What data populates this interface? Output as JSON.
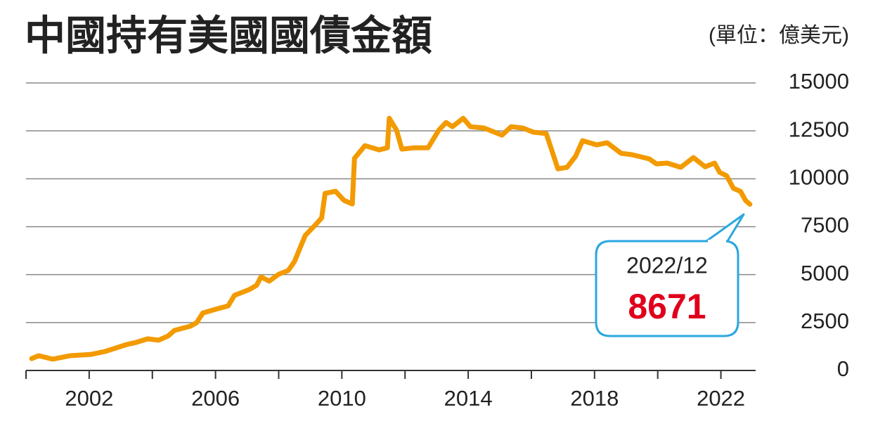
{
  "chart_data": {
    "type": "line",
    "title": "中國持有美國國債金額",
    "unit": "(單位：億美元)",
    "x": [
      2000.18,
      2000.4,
      2000.84,
      2001.4,
      2002.07,
      2002.5,
      2003.2,
      2003.5,
      2003.85,
      2004.2,
      2004.5,
      2004.7,
      2005.2,
      2005.4,
      2005.6,
      2006.0,
      2006.4,
      2006.6,
      2007.07,
      2007.3,
      2007.44,
      2007.7,
      2008.0,
      2008.3,
      2008.5,
      2008.84,
      2009.2,
      2009.36,
      2009.47,
      2009.8,
      2010.07,
      2010.33,
      2010.4,
      2010.73,
      2011.18,
      2011.44,
      2011.5,
      2011.73,
      2011.9,
      2012.3,
      2012.73,
      2013.07,
      2013.3,
      2013.5,
      2013.84,
      2014.07,
      2014.5,
      2015.07,
      2015.36,
      2015.73,
      2016.07,
      2016.47,
      2016.84,
      2017.13,
      2017.4,
      2017.62,
      2018.07,
      2018.4,
      2018.84,
      2019.18,
      2019.73,
      2019.96,
      2020.3,
      2020.73,
      2021.13,
      2021.5,
      2021.8,
      2021.96,
      2022.18,
      2022.4,
      2022.62,
      2022.78,
      2022.92
    ],
    "series": [
      {
        "name": "中國持有美國國債金額",
        "color": "#f29a00",
        "values": [
          620,
          770,
          590,
          770,
          840,
          990,
          1360,
          1470,
          1650,
          1580,
          1800,
          2090,
          2310,
          2490,
          3000,
          3190,
          3370,
          3920,
          4220,
          4440,
          4880,
          4660,
          5020,
          5210,
          5680,
          7040,
          7660,
          7960,
          9240,
          9350,
          8870,
          8690,
          11070,
          11730,
          11510,
          11620,
          13160,
          12540,
          11550,
          11620,
          11620,
          12540,
          12940,
          12720,
          13160,
          12720,
          12650,
          12280,
          12720,
          12650,
          12430,
          12360,
          10520,
          10600,
          11180,
          11990,
          11770,
          11880,
          11330,
          11260,
          11040,
          10780,
          10820,
          10600,
          11110,
          10630,
          10820,
          10340,
          10160,
          9500,
          9350,
          8870,
          8671
        ]
      }
    ],
    "xlim": [
      2000,
      2023.1
    ],
    "xticks": [
      2002,
      2006,
      2010,
      2014,
      2018,
      2022
    ],
    "xminorticks": [
      2000,
      2004,
      2008,
      2012,
      2016,
      2020
    ],
    "ylim": [
      0,
      15000
    ],
    "yticks": [
      0,
      2500,
      5000,
      7500,
      10000,
      12500,
      15000
    ],
    "grid": true,
    "annotation": {
      "label": "2022/12",
      "value": 8671
    }
  }
}
